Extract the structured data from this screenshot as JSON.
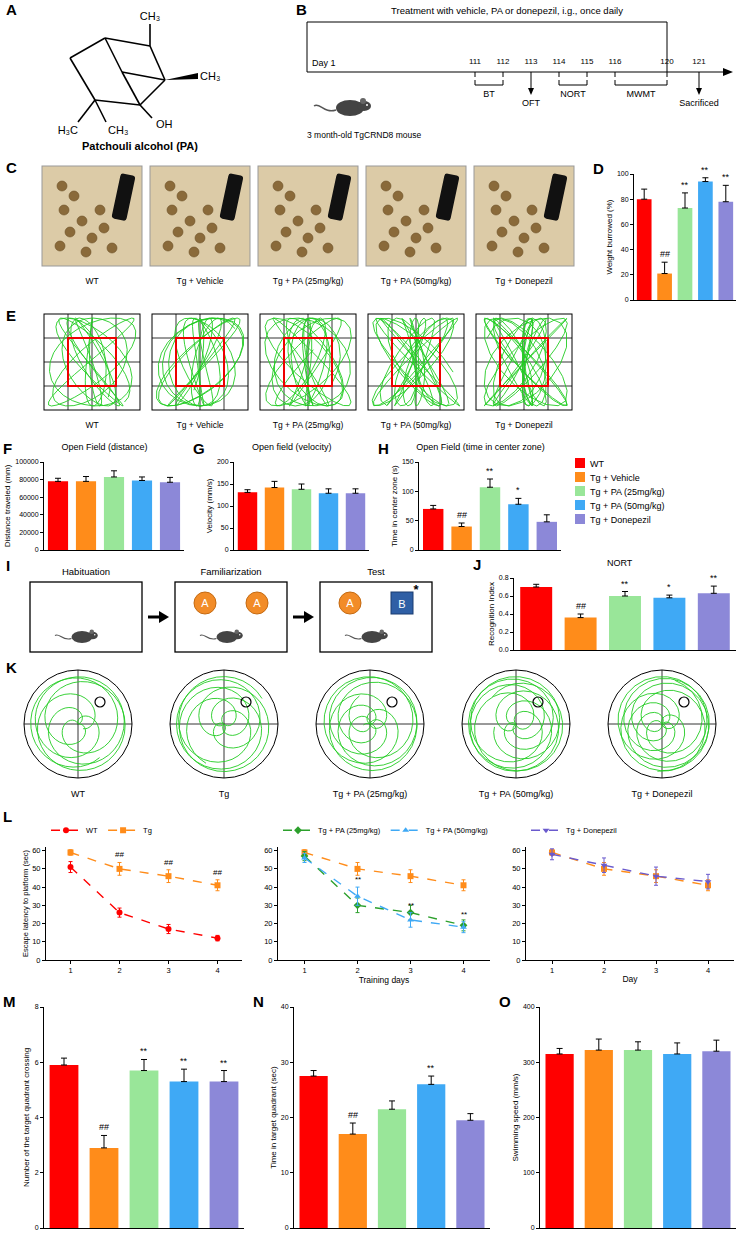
{
  "groups": [
    "WT",
    "Tg + Vehicle",
    "Tg + PA (25mg/kg)",
    "Tg + PA (50mg/kg)",
    "Tg + Donepezil"
  ],
  "colors": [
    "#ff0000",
    "#ff8c1a",
    "#99e699",
    "#3fa9f5",
    "#8c88d8"
  ],
  "structure": {
    "panel": "A",
    "name": "Patchouli alcohol (PA)",
    "groups": [
      "CH₃",
      "CH₃",
      "H₃C",
      "CH₃",
      "OH"
    ]
  },
  "timeline": {
    "panel": "B",
    "treatment": "Treatment with vehicle, PA or donepezil, i.g., once daily",
    "treatment_end": 120,
    "start": "Day 1",
    "animal": "3 month-old TgCRND8 mouse",
    "days": [
      111,
      112,
      113,
      114,
      115,
      116,
      120,
      121
    ],
    "tests": [
      {
        "label": "BT",
        "from": 111,
        "to": 112
      },
      {
        "label": "OFT",
        "from": 113,
        "to": 113
      },
      {
        "label": "NORT",
        "from": 114,
        "to": 115
      },
      {
        "label": "MWMT",
        "from": 116,
        "to": 120
      }
    ],
    "end": {
      "label": "Sacrificed",
      "day": 121
    }
  },
  "burrowing_photos": {
    "panel": "C"
  },
  "open_field_tracks": {
    "panel": "E"
  },
  "nort_scheme": {
    "panel": "I",
    "stages": [
      {
        "title": "Habituation",
        "objects": []
      },
      {
        "title": "Familiarization",
        "objects": [
          "A",
          "A"
        ]
      },
      {
        "title": "Test",
        "objects": [
          "A",
          "B"
        ]
      }
    ],
    "novel_mark": "*"
  },
  "water_maze_tracks": {
    "panel": "K",
    "labels": [
      "WT",
      "Tg",
      "Tg + PA (25mg/kg)",
      "Tg + PA (50mg/kg)",
      "Tg + Donepezil"
    ]
  },
  "chart_data": [
    {
      "panel": "D",
      "type": "bar",
      "categories": [
        "WT",
        "Tg + Vehicle",
        "Tg + PA (25mg/kg)",
        "Tg + PA (50mg/kg)",
        "Tg + Donepezil"
      ],
      "values": [
        80,
        21,
        73,
        94,
        78
      ],
      "errors": [
        8,
        9,
        12,
        3,
        13
      ],
      "annotations": [
        null,
        "##",
        "**",
        "**",
        "**"
      ],
      "colors": [
        "#ff0000",
        "#ff8c1a",
        "#99e699",
        "#3fa9f5",
        "#8c88d8"
      ],
      "ylabel": "Weight burrowed (%)",
      "ylim": [
        0,
        100
      ],
      "yticks": [
        0,
        20,
        40,
        60,
        80,
        100
      ],
      "tick_labels": "y"
    },
    {
      "panel": "F",
      "type": "bar",
      "title": "Open Field (distance)",
      "categories": [
        "WT",
        "Tg + Vehicle",
        "Tg + PA (25mg/kg)",
        "Tg + PA (50mg/kg)",
        "Tg + Donepezil"
      ],
      "values": [
        78000,
        78000,
        83000,
        79000,
        77000
      ],
      "errors": [
        3500,
        5500,
        7000,
        4000,
        5500
      ],
      "colors": [
        "#ff0000",
        "#ff8c1a",
        "#99e699",
        "#3fa9f5",
        "#8c88d8"
      ],
      "ylabel": "Distance traveled (mm)",
      "ylim": [
        0,
        100000
      ],
      "yticks": [
        0,
        20000,
        40000,
        60000,
        80000,
        100000
      ],
      "tick_labels": "y"
    },
    {
      "panel": "G",
      "type": "bar",
      "title": "Open field (velocity)",
      "categories": [
        "WT",
        "Tg + Vehicle",
        "Tg + PA (25mg/kg)",
        "Tg + PA (50mg/kg)",
        "Tg + Donepezil"
      ],
      "values": [
        131,
        142,
        138,
        129,
        129
      ],
      "errors": [
        6,
        14,
        12,
        10,
        10
      ],
      "colors": [
        "#ff0000",
        "#ff8c1a",
        "#99e699",
        "#3fa9f5",
        "#8c88d8"
      ],
      "ylabel": "Velocity (mm/s)",
      "ylim": [
        0,
        200
      ],
      "yticks": [
        0,
        50,
        100,
        150,
        200
      ],
      "tick_labels": "y"
    },
    {
      "panel": "H",
      "type": "bar",
      "title": "Open Field (time in center zone)",
      "categories": [
        "WT",
        "Tg + Vehicle",
        "Tg + PA (25mg/kg)",
        "Tg + PA (50mg/kg)",
        "Tg + Donepezil"
      ],
      "values": [
        70,
        40,
        107,
        78,
        48
      ],
      "errors": [
        6,
        6,
        14,
        10,
        12
      ],
      "annotations": [
        null,
        "##",
        "**",
        "*",
        null
      ],
      "colors": [
        "#ff0000",
        "#ff8c1a",
        "#99e699",
        "#3fa9f5",
        "#8c88d8"
      ],
      "ylabel": "Time in center zone (s)",
      "ylim": [
        0,
        150
      ],
      "yticks": [
        0,
        50,
        100,
        150
      ],
      "tick_labels": "y",
      "legend": "right"
    },
    {
      "panel": "J",
      "type": "bar",
      "title": "NORT",
      "categories": [
        "WT",
        "Tg + Vehicle",
        "Tg + PA (25mg/kg)",
        "Tg + PA (50mg/kg)",
        "Tg + Donepezil"
      ],
      "values": [
        0.7,
        0.36,
        0.6,
        0.58,
        0.63
      ],
      "errors": [
        0.03,
        0.04,
        0.05,
        0.03,
        0.08
      ],
      "annotations": [
        null,
        "##",
        "**",
        "*",
        "**"
      ],
      "colors": [
        "#ff0000",
        "#ff8c1a",
        "#99e699",
        "#3fa9f5",
        "#8c88d8"
      ],
      "ylabel": "Recognition Index",
      "ylim": [
        0,
        0.8
      ],
      "yticks": [
        {
          "value": 0,
          "label": "0.0"
        },
        {
          "value": 0.2,
          "label": "0.2"
        },
        {
          "value": 0.4,
          "label": "0.4"
        },
        {
          "value": 0.6,
          "label": "0.6"
        },
        {
          "value": 0.8,
          "label": "0.8"
        }
      ],
      "tick_labels": "y"
    },
    {
      "panel": "L",
      "type": "line",
      "ylabel": "Escape latency to platform (sec)",
      "x": [
        1,
        2,
        3,
        4
      ],
      "xlim": [
        0.5,
        4.5
      ],
      "xticks": [
        1,
        2,
        3,
        4
      ],
      "ylim": [
        0,
        62
      ],
      "yticks": [
        0,
        10,
        20,
        30,
        40,
        50,
        60
      ],
      "legend": "top",
      "series": [
        {
          "name": "WT",
          "color": "#ff0000",
          "marker": "circle",
          "line_style": "dash",
          "values": [
            51,
            26,
            17,
            12
          ],
          "errors": [
            3,
            2.5,
            2.5,
            1.5
          ]
        },
        {
          "name": "Tg",
          "color": "#ff8c1a",
          "marker": "square",
          "line_style": "dash",
          "values": [
            59,
            50,
            46,
            41
          ],
          "errors": [
            1.5,
            3.5,
            3.5,
            3
          ],
          "annotations": [
            null,
            "##",
            "##",
            "##"
          ]
        }
      ]
    },
    {
      "type": "line",
      "xlabel": "Training days",
      "x": [
        1,
        2,
        3,
        4
      ],
      "xlim": [
        0.5,
        4.5
      ],
      "xticks": [
        1,
        2,
        3,
        4
      ],
      "ylim": [
        0,
        62
      ],
      "yticks": [
        0,
        10,
        20,
        30,
        40,
        50,
        60
      ],
      "legend": "top",
      "series": [
        {
          "color": "#ff8c1a",
          "marker": "square",
          "line_style": "dash",
          "values": [
            59,
            50,
            46,
            41
          ],
          "errors": [
            1.5,
            3.5,
            3.5,
            3
          ]
        },
        {
          "name": "Tg + PA (25mg/kg)",
          "color": "#2ca02c",
          "marker": "diamond",
          "line_style": "dash",
          "values": [
            57,
            30,
            26,
            19
          ],
          "errors": [
            2.5,
            4,
            4,
            3
          ]
        },
        {
          "name": "Tg + PA (50mg/kg)",
          "color": "#3fa9f5",
          "marker": "triangle-up",
          "line_style": "dash",
          "values": [
            56,
            35,
            22,
            18
          ],
          "errors": [
            2.5,
            5,
            4,
            3
          ],
          "annotations": [
            null,
            "**",
            "**",
            "**"
          ]
        }
      ]
    },
    {
      "type": "line",
      "xlabel": "Day",
      "x": [
        1,
        2,
        3,
        4
      ],
      "xlim": [
        0.5,
        4.5
      ],
      "xticks": [
        1,
        2,
        3,
        4
      ],
      "ylim": [
        0,
        62
      ],
      "yticks": [
        0,
        10,
        20,
        30,
        40,
        50,
        60
      ],
      "legend": "top",
      "series": [
        {
          "color": "#ff8c1a",
          "marker": "square",
          "line_style": "dash",
          "values": [
            59,
            50,
            46,
            41
          ],
          "errors": [
            1.5,
            3.5,
            3.5,
            3
          ]
        },
        {
          "name": "Tg + Donepezil",
          "color": "#6a5acd",
          "marker": "triangle-down",
          "line_style": "dash",
          "values": [
            58,
            52,
            46,
            43
          ],
          "errors": [
            3,
            4,
            5,
            4
          ]
        }
      ]
    },
    {
      "panel": "M",
      "type": "bar",
      "categories": [
        "WT",
        "Tg + Vehicle",
        "Tg + PA (25mg/kg)",
        "Tg + PA (50mg/kg)",
        "Tg + Donepezil"
      ],
      "values": [
        5.9,
        2.9,
        5.7,
        5.3,
        5.3
      ],
      "errors": [
        0.25,
        0.45,
        0.4,
        0.45,
        0.4
      ],
      "annotations": [
        null,
        "##",
        "**",
        "**",
        "**"
      ],
      "colors": [
        "#ff0000",
        "#ff8c1a",
        "#99e699",
        "#3fa9f5",
        "#8c88d8"
      ],
      "ylabel": "Number of the target quadrant crossing",
      "ylim": [
        0,
        8
      ],
      "yticks": [
        0,
        2,
        4,
        6,
        8
      ],
      "tick_labels": "y"
    },
    {
      "panel": "N",
      "type": "bar",
      "categories": [
        "WT",
        "Tg + Vehicle",
        "Tg + PA (25mg/kg)",
        "Tg + PA (50mg/kg)",
        "Tg + Donepezil"
      ],
      "values": [
        27.5,
        17,
        21.5,
        26,
        19.5
      ],
      "errors": [
        1,
        2,
        1.5,
        1.5,
        1.2
      ],
      "annotations": [
        null,
        "##",
        null,
        "**",
        null
      ],
      "colors": [
        "#ff0000",
        "#ff8c1a",
        "#99e699",
        "#3fa9f5",
        "#8c88d8"
      ],
      "ylabel": "Time in target quadrant (sec)",
      "ylim": [
        0,
        40
      ],
      "yticks": [
        0,
        10,
        20,
        30,
        40
      ],
      "tick_labels": "y"
    },
    {
      "panel": "O",
      "type": "bar",
      "categories": [
        "WT",
        "Tg + Vehicle",
        "Tg + PA (25mg/kg)",
        "Tg + PA (50mg/kg)",
        "Tg + Donepezil"
      ],
      "values": [
        315,
        322,
        322,
        315,
        320
      ],
      "errors": [
        10,
        20,
        15,
        20,
        20
      ],
      "colors": [
        "#ff0000",
        "#ff8c1a",
        "#99e699",
        "#3fa9f5",
        "#8c88d8"
      ],
      "ylabel": "Swimming speed (mm/s)",
      "ylim": [
        0,
        400
      ],
      "yticks": [
        0,
        100,
        200,
        300,
        400
      ],
      "tick_labels": "y"
    }
  ]
}
